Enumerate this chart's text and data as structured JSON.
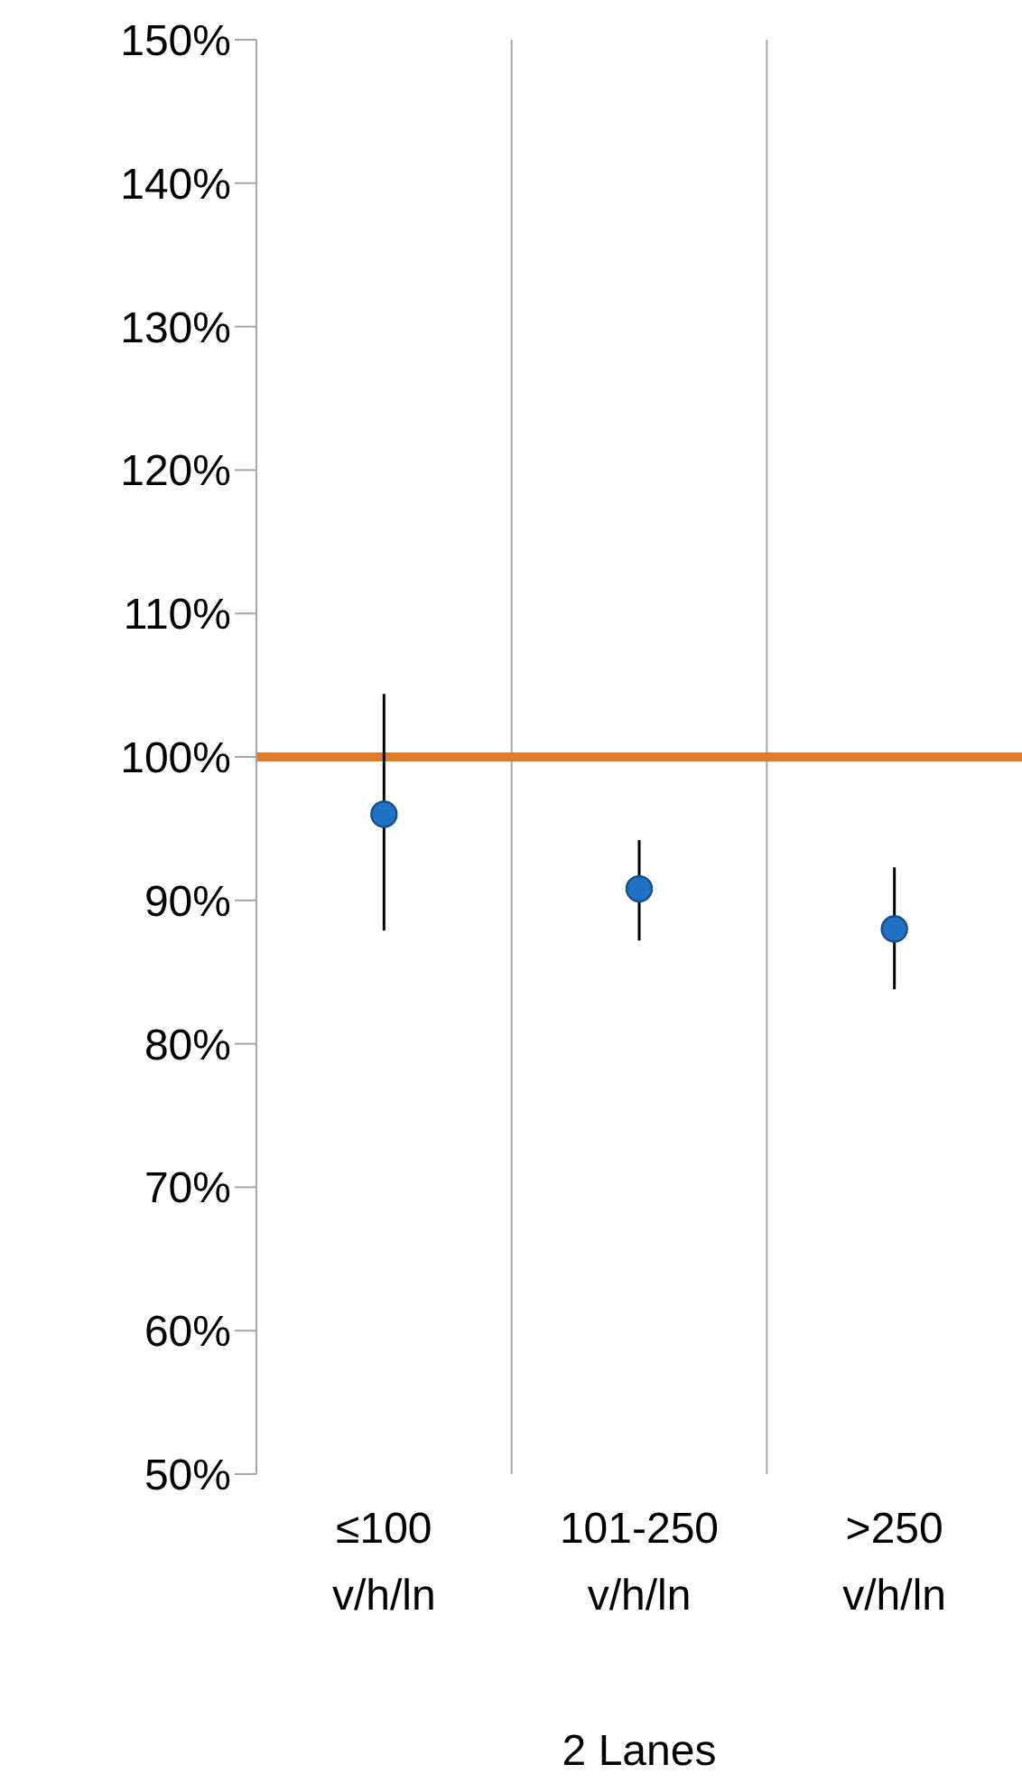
{
  "chart_data": {
    "type": "scatter",
    "xlabel": "2 Lanes",
    "categories": [
      "≤100 v/h/ln",
      "101-250 v/h/ln",
      ">250 v/h/ln"
    ],
    "series": [
      {
        "color": "#1f72c4",
        "values": [
          96,
          90.8,
          88
        ],
        "errors": [
          [
            87.9,
            104.4
          ],
          [
            87.2,
            94.2
          ],
          [
            83.8,
            92.3
          ]
        ]
      }
    ],
    "ylim": [
      50,
      150
    ],
    "yticks": [
      {
        "value": 50,
        "label": "50%"
      },
      {
        "value": 60,
        "label": "60%"
      },
      {
        "value": 70,
        "label": "70%"
      },
      {
        "value": 80,
        "label": "80%"
      },
      {
        "value": 90,
        "label": "90%"
      },
      {
        "value": 100,
        "label": "100%"
      },
      {
        "value": 110,
        "label": "110%"
      },
      {
        "value": 120,
        "label": "120%"
      },
      {
        "value": 130,
        "label": "130%"
      },
      {
        "value": 140,
        "label": "140%"
      },
      {
        "value": 150,
        "label": "150%"
      }
    ],
    "ref_lines": [
      {
        "axis": "y",
        "value": 100,
        "color": "#e07b2a"
      }
    ],
    "grid": "x",
    "marker": "circle"
  }
}
